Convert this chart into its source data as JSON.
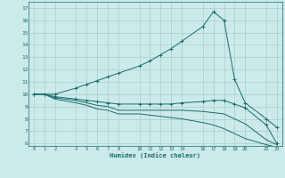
{
  "xlabel": "Humidex (Indice chaleur)",
  "bg_color": "#cceaea",
  "grid_color": "#aacccc",
  "line_color": "#1a6b6b",
  "xlim": [
    -0.5,
    23.5
  ],
  "ylim": [
    5.8,
    17.5
  ],
  "xticks": [
    0,
    1,
    2,
    4,
    5,
    6,
    7,
    8,
    10,
    11,
    12,
    13,
    14,
    16,
    17,
    18,
    19,
    20,
    22,
    23
  ],
  "yticks": [
    6,
    7,
    8,
    9,
    10,
    11,
    12,
    13,
    14,
    15,
    16,
    17
  ],
  "line1_x": [
    0,
    1,
    2,
    4,
    5,
    6,
    7,
    8,
    10,
    11,
    12,
    13,
    14,
    16,
    17,
    18,
    19,
    20,
    22,
    23
  ],
  "line1_y": [
    10,
    10,
    10,
    10.5,
    10.8,
    11.1,
    11.4,
    11.7,
    12.3,
    12.7,
    13.2,
    13.7,
    14.3,
    15.5,
    16.7,
    16.0,
    11.2,
    9.3,
    8.0,
    7.3
  ],
  "line2_x": [
    0,
    1,
    2,
    4,
    5,
    6,
    7,
    8,
    10,
    11,
    12,
    13,
    14,
    16,
    17,
    18,
    19,
    20,
    22,
    23
  ],
  "line2_y": [
    10,
    10,
    9.8,
    9.6,
    9.5,
    9.4,
    9.3,
    9.2,
    9.2,
    9.2,
    9.2,
    9.2,
    9.3,
    9.4,
    9.5,
    9.5,
    9.2,
    8.9,
    7.5,
    6.0
  ],
  "line3_x": [
    0,
    1,
    2,
    4,
    5,
    6,
    7,
    8,
    10,
    11,
    12,
    13,
    14,
    16,
    17,
    18,
    19,
    20,
    22,
    23
  ],
  "line3_y": [
    10,
    10,
    9.7,
    9.5,
    9.3,
    9.1,
    9.0,
    8.7,
    8.7,
    8.7,
    8.7,
    8.7,
    8.7,
    8.6,
    8.5,
    8.4,
    8.0,
    7.6,
    6.3,
    5.9
  ],
  "line4_x": [
    0,
    1,
    2,
    4,
    5,
    6,
    7,
    8,
    10,
    11,
    12,
    13,
    14,
    16,
    17,
    18,
    19,
    20,
    22,
    23
  ],
  "line4_y": [
    10,
    10,
    9.6,
    9.3,
    9.1,
    8.8,
    8.7,
    8.4,
    8.4,
    8.3,
    8.2,
    8.1,
    8.0,
    7.7,
    7.5,
    7.2,
    6.8,
    6.4,
    5.9,
    5.7
  ]
}
